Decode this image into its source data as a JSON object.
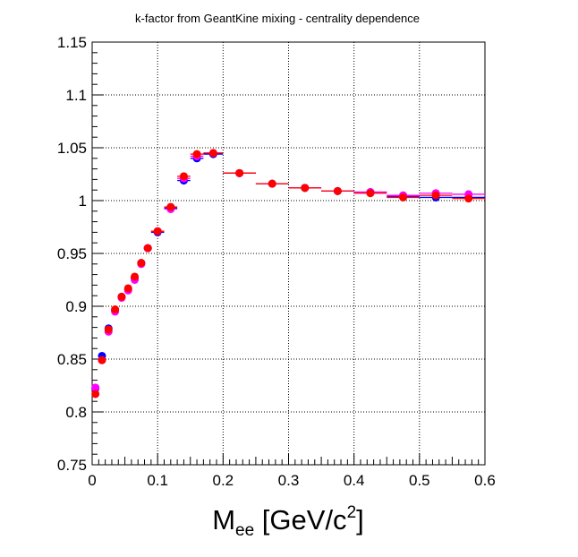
{
  "chart_data": {
    "type": "scatter",
    "title": "k-factor from GeantKine mixing - centrality dependence",
    "xlabel": {
      "main": "M",
      "subscript": "ee",
      "unit_prefix": " [GeV/c",
      "superscript": "2",
      "unit_suffix": "]"
    },
    "ylabel": "",
    "xlim": [
      0,
      0.6
    ],
    "ylim": [
      0.75,
      1.15
    ],
    "x_ticks": [
      "0",
      "0.1",
      "0.2",
      "0.3",
      "0.4",
      "0.5",
      "0.6"
    ],
    "y_ticks": [
      "0.75",
      "0.8",
      "0.85",
      "0.9",
      "0.95",
      "1",
      "1.05",
      "1.1",
      "1.15"
    ],
    "grid": true,
    "bin_edges": [
      0,
      0.01,
      0.02,
      0.03,
      0.04,
      0.05,
      0.06,
      0.07,
      0.08,
      0.09,
      0.11,
      0.13,
      0.15,
      0.17,
      0.2,
      0.25,
      0.3,
      0.35,
      0.4,
      0.45,
      0.5,
      0.55,
      0.6
    ],
    "x": [
      0.005,
      0.015,
      0.025,
      0.035,
      0.045,
      0.055,
      0.065,
      0.075,
      0.085,
      0.1,
      0.12,
      0.14,
      0.16,
      0.185,
      0.225,
      0.275,
      0.325,
      0.375,
      0.425,
      0.475,
      0.525,
      0.575
    ],
    "series": [
      {
        "color": "#0000ff",
        "values": [
          0.822,
          0.853,
          0.879,
          0.896,
          0.909,
          0.916,
          0.927,
          0.941,
          0.955,
          0.97,
          0.993,
          1.019,
          1.04,
          1.044,
          1.026,
          1.016,
          1.012,
          1.009,
          1.008,
          1.004,
          1.003,
          1.003
        ]
      },
      {
        "color": "#ff00ff",
        "values": [
          0.823,
          0.849,
          0.876,
          0.895,
          0.908,
          0.915,
          0.925,
          0.94,
          0.955,
          0.971,
          0.992,
          1.021,
          1.042,
          1.045,
          1.026,
          1.016,
          1.012,
          1.009,
          1.008,
          1.005,
          1.007,
          1.006
        ]
      },
      {
        "color": "#ff0000",
        "values": [
          0.817,
          0.849,
          0.878,
          0.897,
          0.909,
          0.917,
          0.928,
          0.941,
          0.955,
          0.971,
          0.994,
          1.023,
          1.044,
          1.045,
          1.026,
          1.016,
          1.012,
          1.009,
          1.007,
          1.003,
          1.005,
          1.002
        ]
      }
    ]
  }
}
